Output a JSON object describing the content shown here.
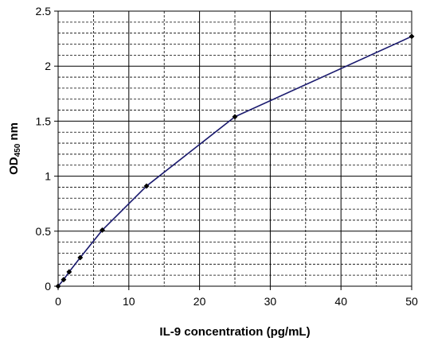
{
  "chart_data": {
    "type": "line",
    "title": "",
    "xlabel": "IL-9 concentration (pg/mL)",
    "ylabel": "OD450 nm",
    "ylabel_parts": {
      "main": "OD",
      "sub": "450",
      "unit": " nm"
    },
    "xlim": [
      0,
      50
    ],
    "ylim": [
      0,
      2.5
    ],
    "x_ticks": [
      0,
      10,
      20,
      30,
      40,
      50
    ],
    "y_ticks": [
      0,
      0.5,
      1,
      1.5,
      2,
      2.5
    ],
    "x_tick_labels": [
      "0",
      "10",
      "20",
      "30",
      "40",
      "50"
    ],
    "y_tick_labels": [
      "0",
      "0.5",
      "1",
      "1.5",
      "2",
      "2.5"
    ],
    "grid": true,
    "legend": "none",
    "series": [
      {
        "x": [
          0,
          0.78,
          1.56,
          3.125,
          6.25,
          12.5,
          25,
          50
        ],
        "y": [
          0.0,
          0.06,
          0.13,
          0.26,
          0.51,
          0.91,
          1.54,
          2.27
        ],
        "color": "#1a1a6e",
        "marker_color": "#000000"
      }
    ]
  }
}
